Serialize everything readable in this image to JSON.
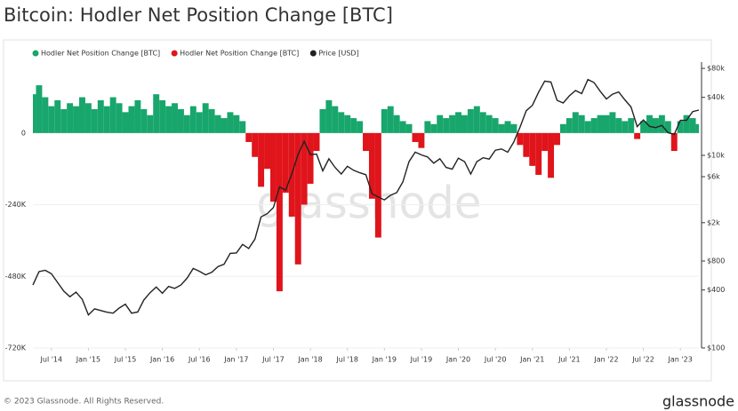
{
  "title": "Bitcoin: Hodler Net Position Change [BTC]",
  "watermark": "glassnode",
  "footer": "© 2023 Glassnode. All Rights Reserved.",
  "logo": "glassnode",
  "chart_data": {
    "type": "bar-line",
    "x": [
      "2014-04",
      "2014-05",
      "2014-06",
      "2014-07",
      "2014-08",
      "2014-09",
      "2014-10",
      "2014-11",
      "2014-12",
      "2015-01",
      "2015-02",
      "2015-03",
      "2015-04",
      "2015-05",
      "2015-06",
      "2015-07",
      "2015-08",
      "2015-09",
      "2015-10",
      "2015-11",
      "2015-12",
      "2016-01",
      "2016-02",
      "2016-03",
      "2016-04",
      "2016-05",
      "2016-06",
      "2016-07",
      "2016-08",
      "2016-09",
      "2016-10",
      "2016-11",
      "2016-12",
      "2017-01",
      "2017-02",
      "2017-03",
      "2017-04",
      "2017-05",
      "2017-06",
      "2017-07",
      "2017-08",
      "2017-09",
      "2017-10",
      "2017-11",
      "2017-12",
      "2018-01",
      "2018-02",
      "2018-03",
      "2018-04",
      "2018-05",
      "2018-06",
      "2018-07",
      "2018-08",
      "2018-09",
      "2018-10",
      "2018-11",
      "2018-12",
      "2019-01",
      "2019-02",
      "2019-03",
      "2019-04",
      "2019-05",
      "2019-06",
      "2019-07",
      "2019-08",
      "2019-09",
      "2019-10",
      "2019-11",
      "2019-12",
      "2020-01",
      "2020-02",
      "2020-03",
      "2020-04",
      "2020-05",
      "2020-06",
      "2020-07",
      "2020-08",
      "2020-09",
      "2020-10",
      "2020-11",
      "2020-12",
      "2021-01",
      "2021-02",
      "2021-03",
      "2021-04",
      "2021-05",
      "2021-06",
      "2021-07",
      "2021-08",
      "2021-09",
      "2021-10",
      "2021-11",
      "2021-12",
      "2022-01",
      "2022-02",
      "2022-03",
      "2022-04",
      "2022-05",
      "2022-06",
      "2022-07",
      "2022-08",
      "2022-09",
      "2022-10",
      "2022-11",
      "2022-12",
      "2023-01",
      "2023-02",
      "2023-03",
      "2023-04"
    ],
    "series": [
      {
        "name": "Hodler Net Position Change [BTC]",
        "color": "#18a66c",
        "values": [
          130000,
          160000,
          120000,
          90000,
          110000,
          80000,
          100000,
          90000,
          120000,
          100000,
          80000,
          110000,
          90000,
          120000,
          100000,
          70000,
          90000,
          110000,
          80000,
          60000,
          130000,
          110000,
          90000,
          100000,
          80000,
          60000,
          90000,
          70000,
          100000,
          80000,
          60000,
          50000,
          70000,
          60000,
          40000,
          null,
          null,
          null,
          null,
          null,
          null,
          null,
          null,
          null,
          null,
          null,
          null,
          80000,
          110000,
          90000,
          70000,
          60000,
          50000,
          40000,
          null,
          null,
          null,
          80000,
          90000,
          60000,
          40000,
          30000,
          null,
          null,
          40000,
          30000,
          60000,
          50000,
          60000,
          70000,
          60000,
          80000,
          90000,
          70000,
          60000,
          50000,
          30000,
          40000,
          30000,
          null,
          null,
          null,
          null,
          null,
          null,
          null,
          30000,
          50000,
          70000,
          60000,
          40000,
          50000,
          60000,
          60000,
          70000,
          50000,
          40000,
          50000,
          null,
          40000,
          60000,
          50000,
          60000,
          40000,
          null,
          40000,
          60000,
          50000,
          30000
        ]
      },
      {
        "name": "Hodler Net Position Change [BTC]",
        "color": "#e0141b",
        "values": [
          null,
          null,
          null,
          null,
          null,
          null,
          null,
          null,
          null,
          null,
          null,
          null,
          null,
          null,
          null,
          null,
          null,
          null,
          null,
          null,
          null,
          null,
          null,
          null,
          null,
          null,
          null,
          null,
          null,
          null,
          null,
          null,
          null,
          null,
          null,
          -30000,
          -80000,
          -180000,
          -120000,
          -230000,
          -530000,
          -200000,
          -280000,
          -440000,
          -240000,
          -170000,
          -60000,
          null,
          null,
          null,
          null,
          null,
          null,
          null,
          -60000,
          -220000,
          -350000,
          null,
          null,
          null,
          null,
          null,
          -30000,
          -50000,
          null,
          null,
          null,
          null,
          null,
          null,
          null,
          null,
          null,
          null,
          null,
          null,
          null,
          null,
          null,
          -40000,
          -80000,
          -110000,
          -140000,
          -60000,
          -150000,
          -40000,
          null,
          null,
          null,
          null,
          null,
          null,
          null,
          null,
          null,
          null,
          null,
          null,
          -20000,
          null,
          null,
          null,
          null,
          null,
          -60000,
          null,
          null,
          null,
          null
        ]
      },
      {
        "name": "Price [USD]",
        "color": "#222222",
        "axis": "y2",
        "values": [
          450,
          620,
          640,
          590,
          480,
          390,
          340,
          380,
          320,
          220,
          255,
          245,
          235,
          230,
          260,
          285,
          230,
          236,
          315,
          375,
          430,
          370,
          435,
          415,
          450,
          530,
          670,
          625,
          575,
          610,
          700,
          740,
          960,
          970,
          1190,
          1080,
          1350,
          2300,
          2480,
          2870,
          4700,
          4340,
          6470,
          10200,
          14000,
          10200,
          10300,
          6900,
          9200,
          7500,
          6400,
          7700,
          7000,
          6600,
          6300,
          4000,
          3700,
          3450,
          3850,
          4100,
          5300,
          8600,
          10800,
          10100,
          9600,
          8300,
          9200,
          7500,
          7200,
          9350,
          8600,
          6400,
          8600,
          9450,
          9140,
          11300,
          11650,
          10780,
          13800,
          19700,
          29000,
          33100,
          45200,
          58900,
          57700,
          37300,
          35000,
          41500,
          47100,
          43800,
          61300,
          57000,
          46300,
          38500,
          43200,
          45500,
          37700,
          31800,
          19900,
          23300,
          20000,
          19400,
          20500,
          17200,
          16500,
          23100,
          23100,
          28500,
          29500
        ]
      }
    ],
    "xlim": [
      "2014-04",
      "2023-04"
    ],
    "xticks": [
      {
        "value": "2014-07",
        "label": "Jul '14"
      },
      {
        "value": "2015-01",
        "label": "Jan '15"
      },
      {
        "value": "2015-07",
        "label": "Jul '15"
      },
      {
        "value": "2016-01",
        "label": "Jan '16"
      },
      {
        "value": "2016-07",
        "label": "Jul '16"
      },
      {
        "value": "2017-01",
        "label": "Jan '17"
      },
      {
        "value": "2017-07",
        "label": "Jul '17"
      },
      {
        "value": "2018-01",
        "label": "Jan '18"
      },
      {
        "value": "2018-07",
        "label": "Jul '18"
      },
      {
        "value": "2019-01",
        "label": "Jan '19"
      },
      {
        "value": "2019-07",
        "label": "Jul '19"
      },
      {
        "value": "2020-01",
        "label": "Jan '20"
      },
      {
        "value": "2020-07",
        "label": "Jul '20"
      },
      {
        "value": "2021-01",
        "label": "Jan '21"
      },
      {
        "value": "2021-07",
        "label": "Jul '21"
      },
      {
        "value": "2022-01",
        "label": "Jan '22"
      },
      {
        "value": "2022-07",
        "label": "Jul '22"
      },
      {
        "value": "2023-01",
        "label": "Jan '23"
      }
    ],
    "ylim": [
      -720000,
      300000
    ],
    "yticks": [
      0,
      {
        "value": -240000,
        "label": "-240K"
      },
      {
        "value": -480000,
        "label": "-480K"
      },
      {
        "value": -720000,
        "label": "-720K"
      }
    ],
    "y2lim": [
      100,
      145000
    ],
    "y2scale": "log",
    "y2ticks": [
      {
        "value": 80000,
        "label": "$80k"
      },
      {
        "value": 40000,
        "label": "$40k"
      },
      {
        "value": 10000,
        "label": "$10k"
      },
      {
        "value": 6000,
        "label": "$6k"
      },
      {
        "value": 2000,
        "label": "$2k"
      },
      {
        "value": 800,
        "label": "$800"
      },
      {
        "value": 400,
        "label": "$400"
      },
      {
        "value": 100,
        "label": "$100"
      }
    ],
    "grid": true
  }
}
